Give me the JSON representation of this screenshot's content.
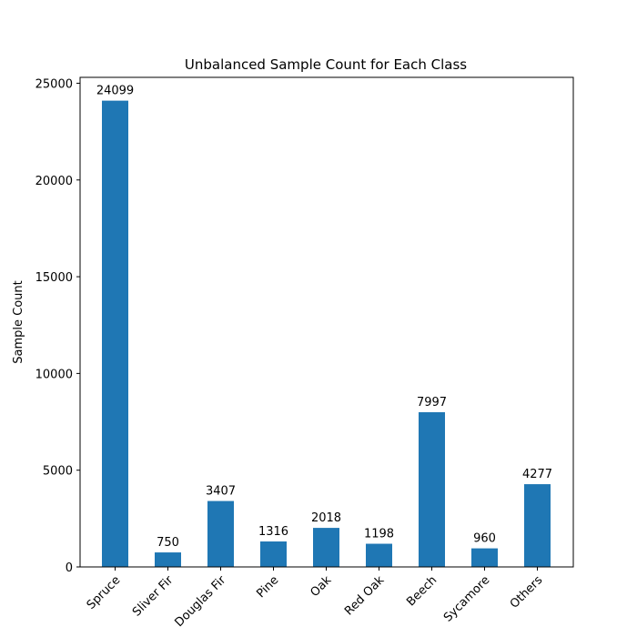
{
  "chart_data": {
    "type": "bar",
    "title": "Unbalanced Sample Count for Each Class",
    "xlabel": "",
    "ylabel": "Sample Count",
    "categories": [
      "Spruce",
      "Sliver Fir",
      "Douglas Fir",
      "Pine",
      "Oak",
      "Red Oak",
      "Beech",
      "Sycamore",
      "Others"
    ],
    "values": [
      24099,
      750,
      3407,
      1316,
      2018,
      1198,
      7997,
      960,
      4277
    ],
    "data_labels": [
      "24099",
      "750",
      "3407",
      "1316",
      "2018",
      "1198",
      "7997",
      "960",
      "4277"
    ],
    "yticks": [
      0,
      5000,
      10000,
      15000,
      20000,
      25000
    ],
    "ytick_labels": [
      "0",
      "5000",
      "10000",
      "15000",
      "20000",
      "25000"
    ],
    "ylim": [
      0,
      25304
    ],
    "grid": false,
    "bar_color": "#1f77b4"
  }
}
